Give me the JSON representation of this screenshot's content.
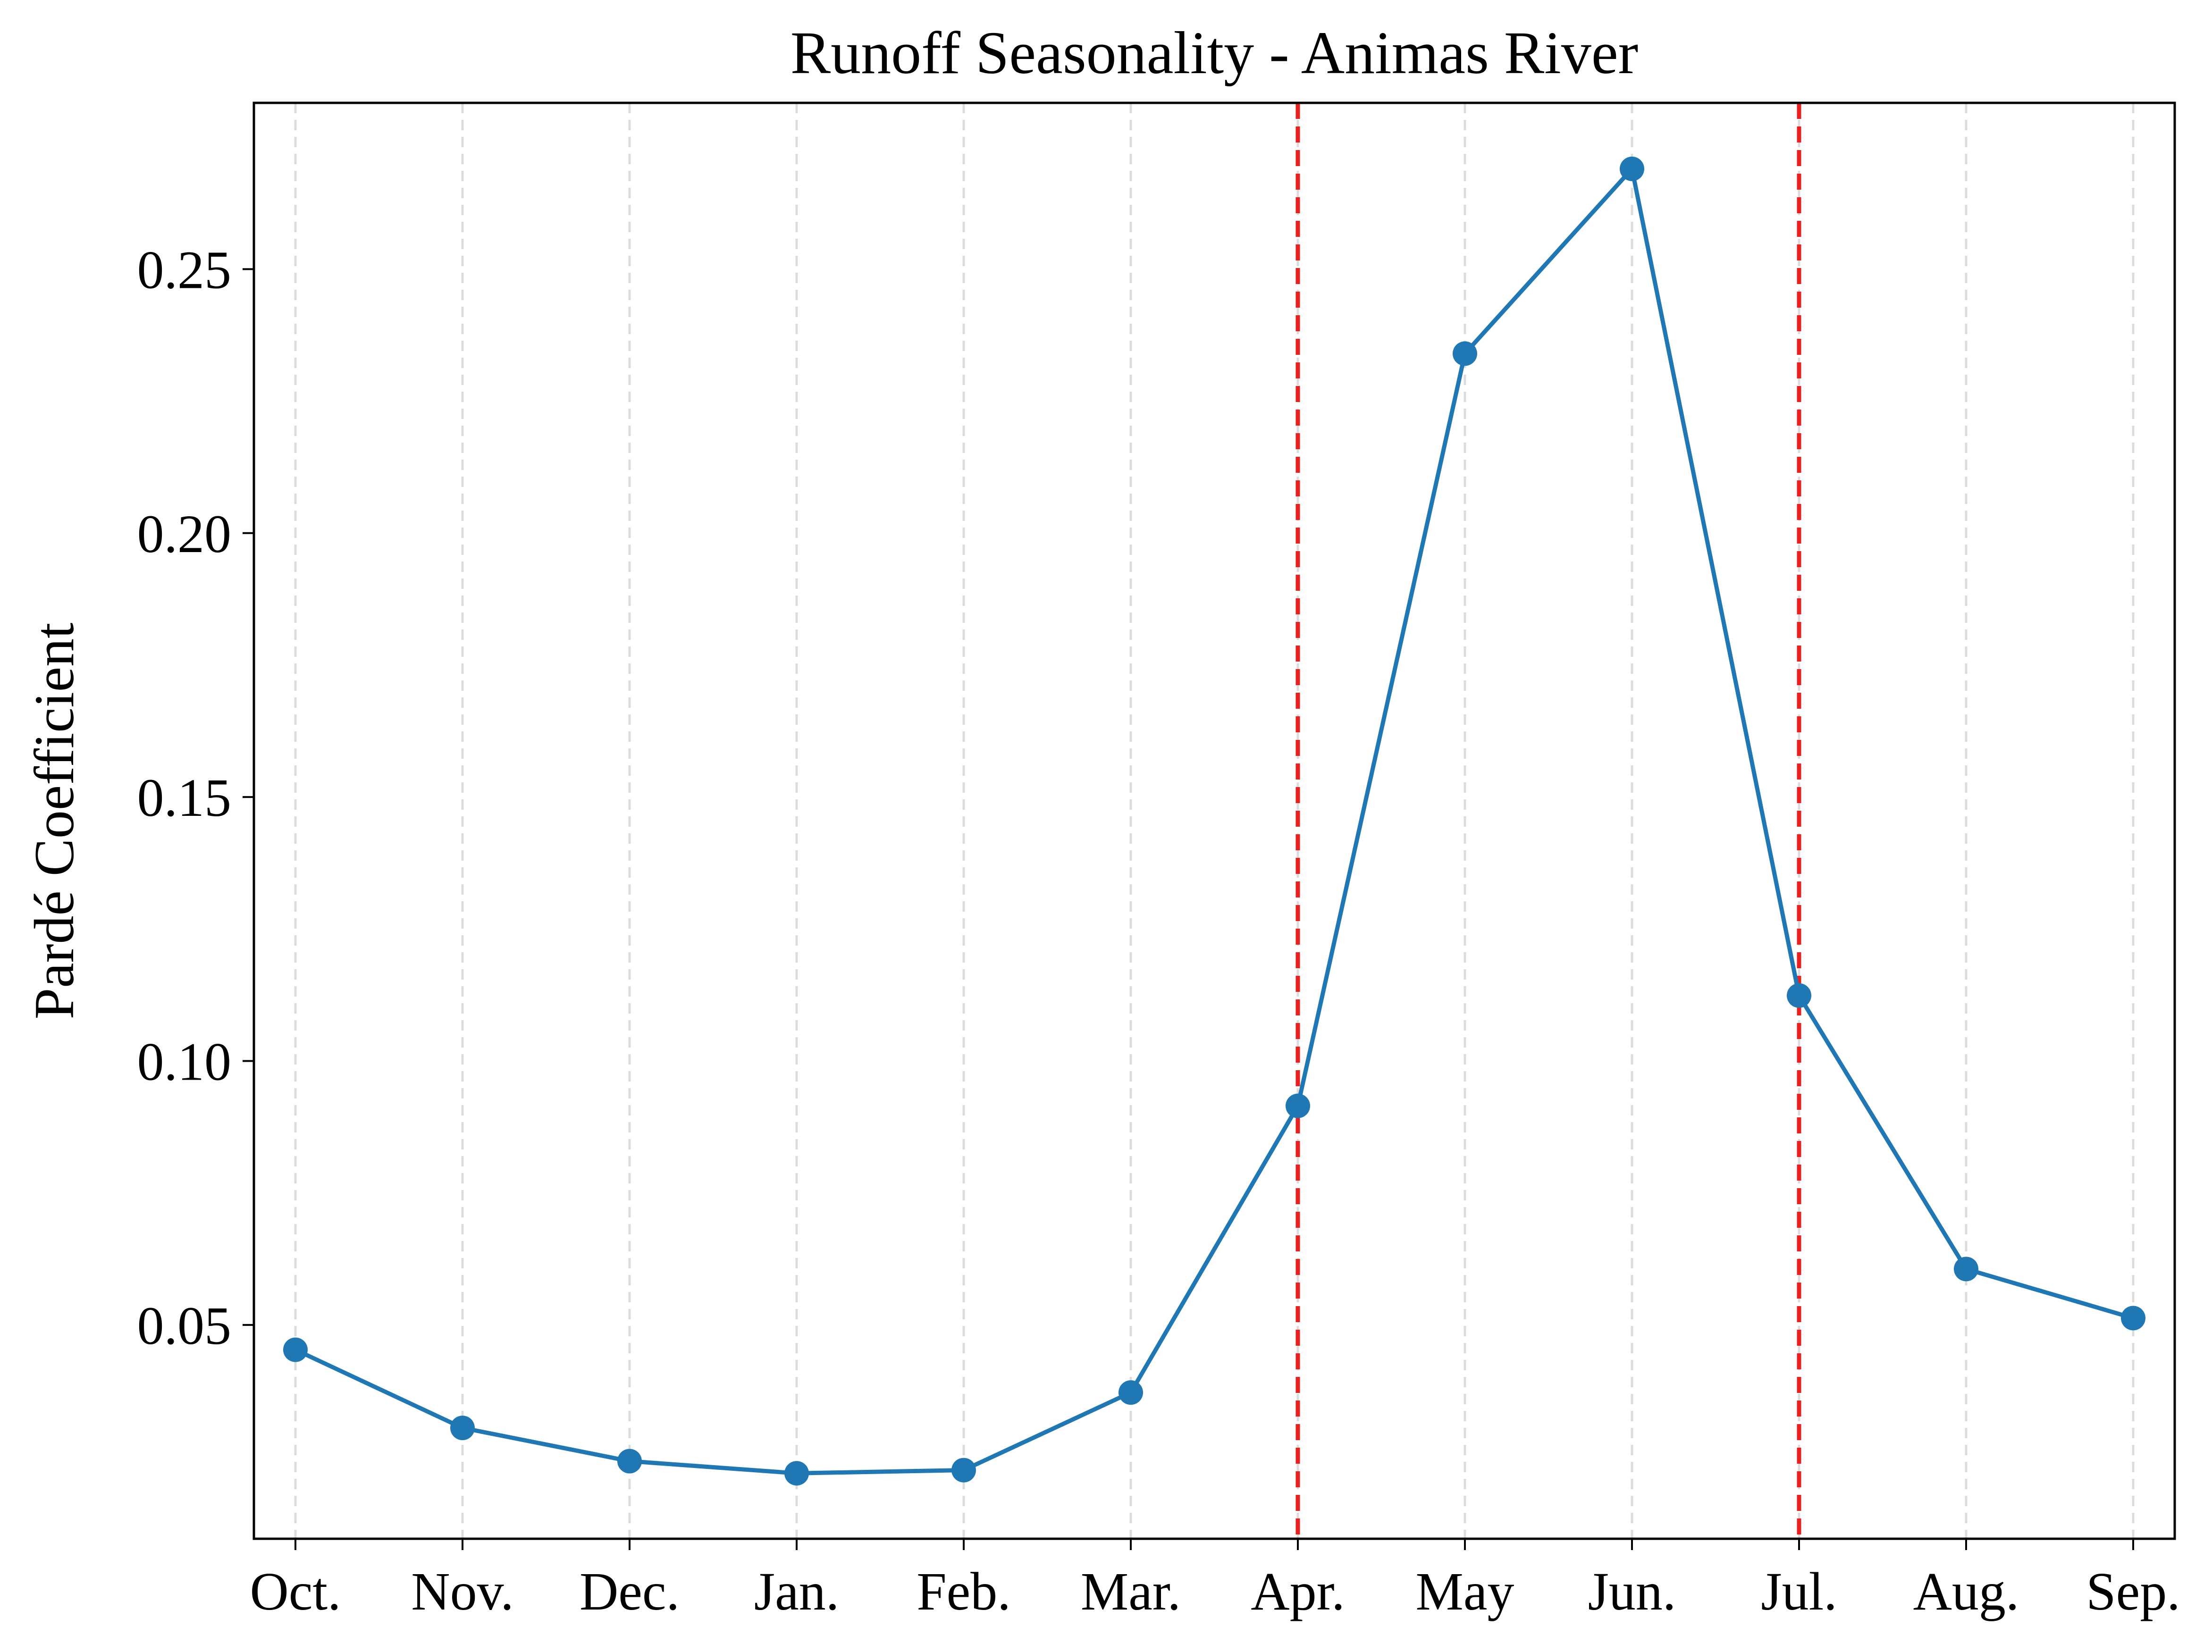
{
  "chart_data": {
    "type": "line",
    "title": "Runoff Seasonality - Animas River",
    "xlabel": "",
    "ylabel": "Pardé Coefficient",
    "categories": [
      "Oct.",
      "Nov.",
      "Dec.",
      "Jan.",
      "Feb.",
      "Mar.",
      "Apr.",
      "May",
      "Jun.",
      "Jul.",
      "Aug.",
      "Sep."
    ],
    "series": [
      {
        "values": [
          0.0453,
          0.0305,
          0.0242,
          0.0219,
          0.0225,
          0.0372,
          0.0915,
          0.234,
          0.269,
          0.1124,
          0.0606,
          0.0513
        ],
        "color": "#1f77b4",
        "marker": "circle"
      }
    ],
    "yticks": [
      0.05,
      0.1,
      0.15,
      0.2,
      0.25
    ],
    "ytick_labels": [
      "0.05",
      "0.10",
      "0.15",
      "0.20",
      "0.25"
    ],
    "ylim": [
      0.0095,
      0.2815
    ],
    "vertical_lines": [
      {
        "category": "Apr.",
        "color": "#e8211f",
        "style": "dashed"
      },
      {
        "category": "Jul.",
        "color": "#e8211f",
        "style": "dashed"
      }
    ],
    "grid": {
      "x": true,
      "y": false,
      "color": "#dcdcdc",
      "style": "dashed"
    }
  }
}
